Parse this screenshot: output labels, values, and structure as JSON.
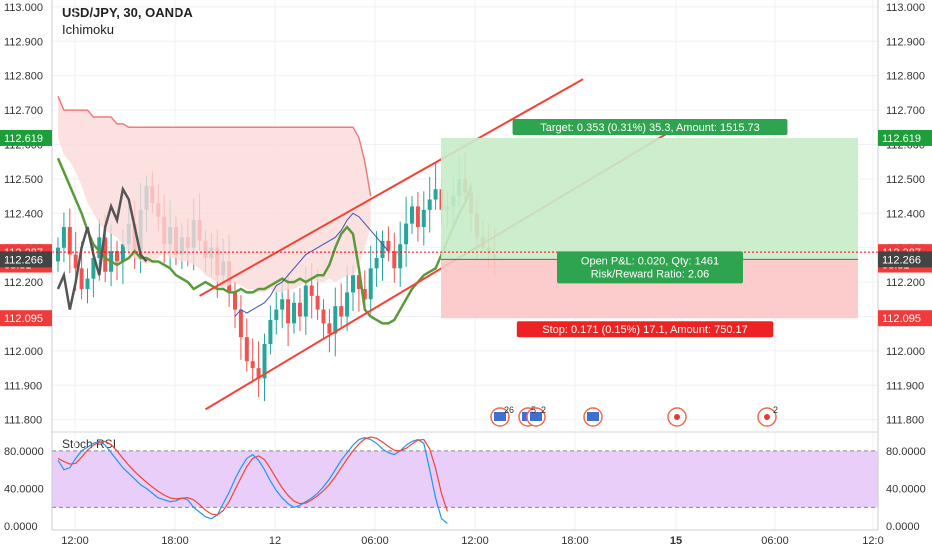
{
  "header": {
    "title": "USD/JPY, 30, OANDA",
    "indicator": "Ichimoku"
  },
  "stoch": {
    "title": "Stoch RSI"
  },
  "colors": {
    "bull": "#26a69a",
    "bear": "#ef5350",
    "red": "#f44336",
    "price_red": "#ff0000",
    "ichimoku_green": "#5b9a3a",
    "stoch_k": "#2196f3",
    "stoch_d": "#f44336"
  },
  "chart_data": {
    "type": "candlestick",
    "symbol": "USD/JPY, 30, OANDA",
    "x_ticks": [
      "12:00",
      "18:00",
      "12",
      "06:00",
      "12:00",
      "18:00",
      "15",
      "06:00",
      "12:0"
    ],
    "y_ticks": [
      "113.000",
      "112.900",
      "112.800",
      "112.700",
      "112.600",
      "112.500",
      "112.400",
      "112.300",
      "112.200",
      "112.100",
      "112.000",
      "111.900",
      "111.800"
    ],
    "ylim": [
      111.77,
      113.02
    ],
    "price_labels": [
      {
        "text": "112.619",
        "value": 112.619,
        "color": "#1e9e3a"
      },
      {
        "text": "112.287",
        "value": 112.287,
        "color": "#ef3b3b"
      },
      {
        "text": "08:31",
        "value": 112.251,
        "color": "#ef3b3b"
      },
      {
        "text": "112.266",
        "value": 112.266,
        "color": "#444444"
      },
      {
        "text": "112.095",
        "value": 112.095,
        "color": "#ef3b3b"
      }
    ],
    "position": {
      "entry": 112.266,
      "target": 112.619,
      "stop": 112.095,
      "target_label": "Target: 0.353 (0.31%) 35.3, Amount: 1515.73",
      "open_label_1": "Open P&L: 0.020, Qty: 1461",
      "open_label_2": "Risk/Reward Ratio: 2.06",
      "stop_label": "Stop: 0.171 (0.15%) 17.1, Amount: 750.17"
    },
    "event_counts": [
      "26",
      "5",
      "2",
      "2"
    ],
    "stoch_y_ticks": [
      "80.0000",
      "40.0000",
      "0.0000"
    ],
    "stoch_ylim": [
      -4,
      100
    ]
  }
}
